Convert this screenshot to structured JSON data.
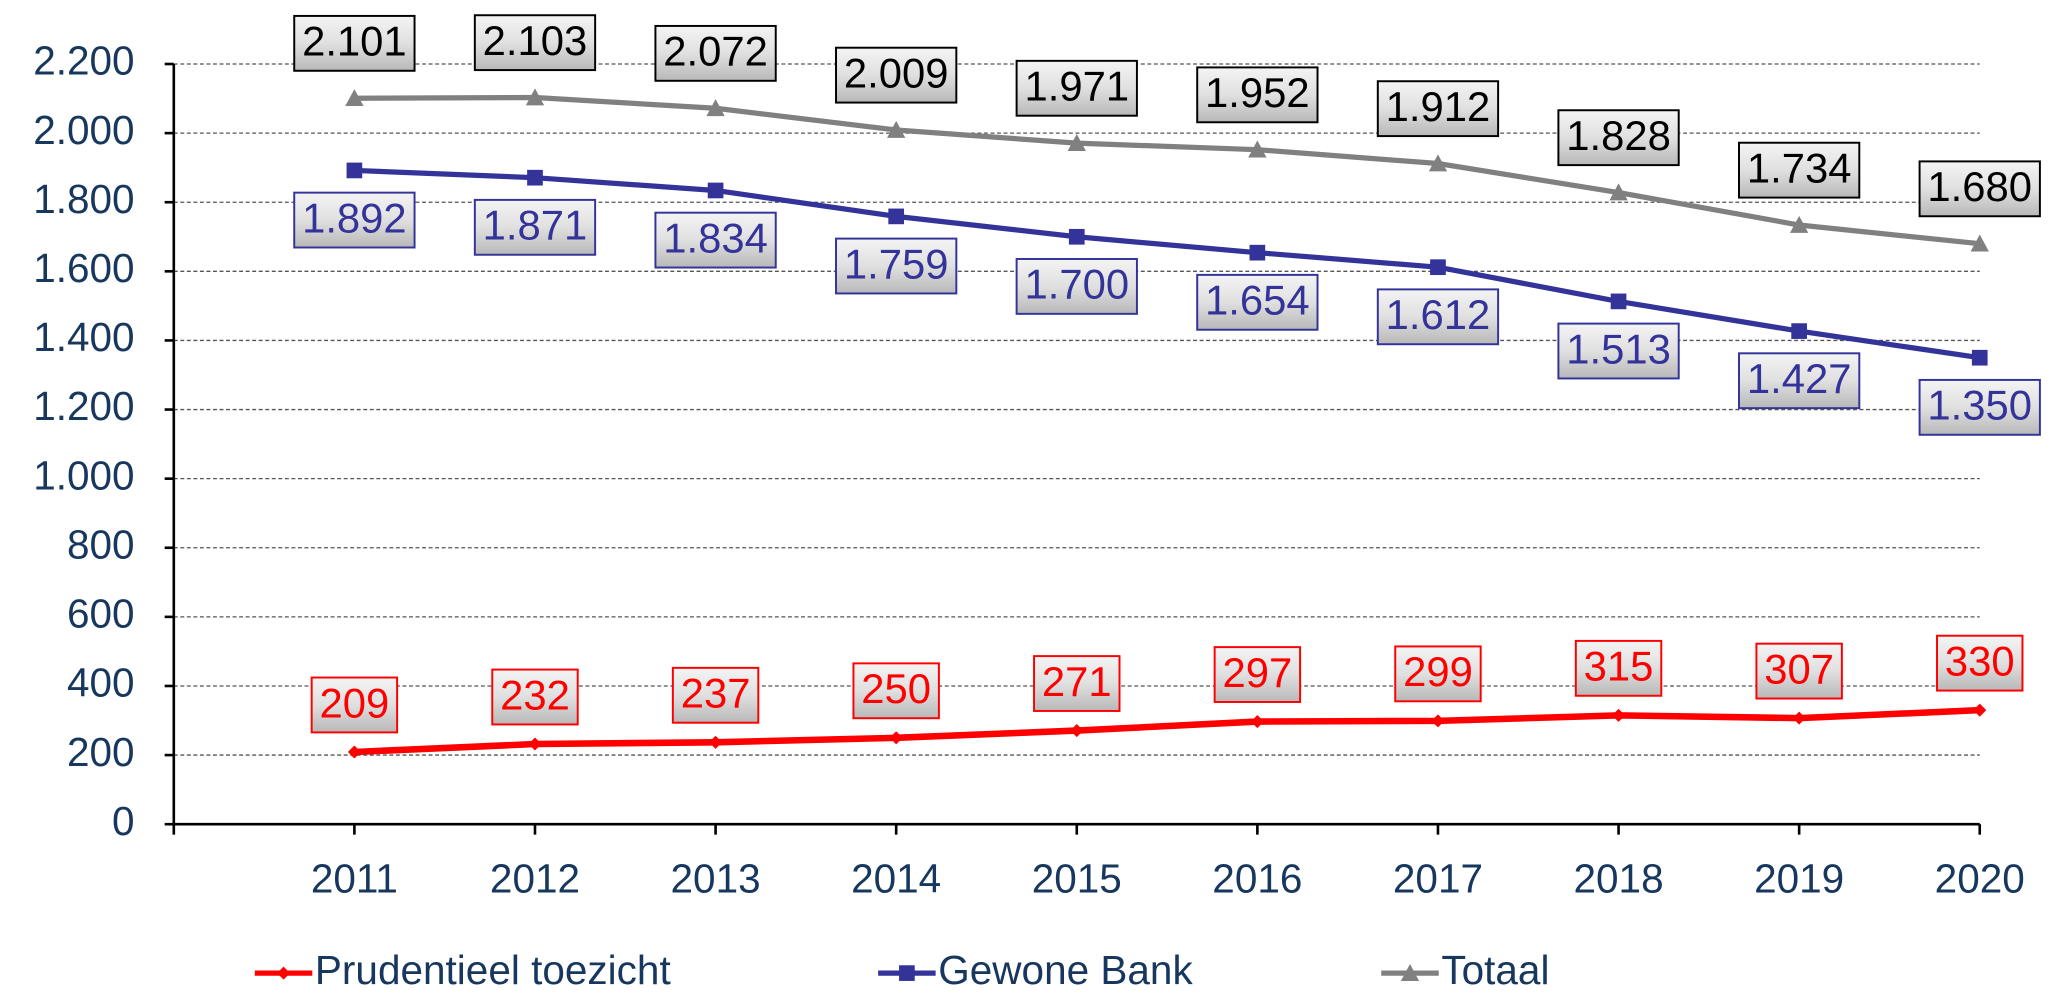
{
  "chart_data": {
    "type": "line",
    "categories": [
      "2011",
      "2012",
      "2013",
      "2014",
      "2015",
      "2016",
      "2017",
      "2018",
      "2019",
      "2020"
    ],
    "series": [
      {
        "name": "Prudentieel toezicht",
        "color": "#ff0000",
        "marker": "diamond",
        "values": [
          209,
          232,
          237,
          250,
          271,
          297,
          299,
          315,
          307,
          330
        ]
      },
      {
        "name": "Gewone Bank",
        "color": "#333399",
        "marker": "square",
        "values": [
          1892,
          1871,
          1834,
          1759,
          1700,
          1654,
          1612,
          1513,
          1427,
          1350
        ],
        "value_labels": [
          "1.892",
          "1.871",
          "1.834",
          "1.759",
          "1.700",
          "1.654",
          "1.612",
          "1.513",
          "1.427",
          "1.350"
        ]
      },
      {
        "name": "Totaal",
        "color": "#808080",
        "marker": "triangle",
        "values": [
          2101,
          2103,
          2072,
          2009,
          1971,
          1952,
          1912,
          1828,
          1734,
          1680
        ],
        "value_labels": [
          "2.101",
          "2.103",
          "2.072",
          "2.009",
          "1.971",
          "1.952",
          "1.912",
          "1.828",
          "1.734",
          "1.680"
        ]
      }
    ],
    "ylim": [
      0,
      2200
    ],
    "yticks": [
      0,
      200,
      400,
      600,
      800,
      {
        "value": 1000,
        "label": "1.000"
      },
      {
        "value": 1200,
        "label": "1.200"
      },
      {
        "value": 1400,
        "label": "1.400"
      },
      {
        "value": 1600,
        "label": "1.600"
      },
      {
        "value": 1800,
        "label": "1.800"
      },
      {
        "value": 2000,
        "label": "2.000"
      },
      {
        "value": 2200,
        "label": "2.200"
      }
    ],
    "grid": true,
    "legend": "bottom"
  }
}
